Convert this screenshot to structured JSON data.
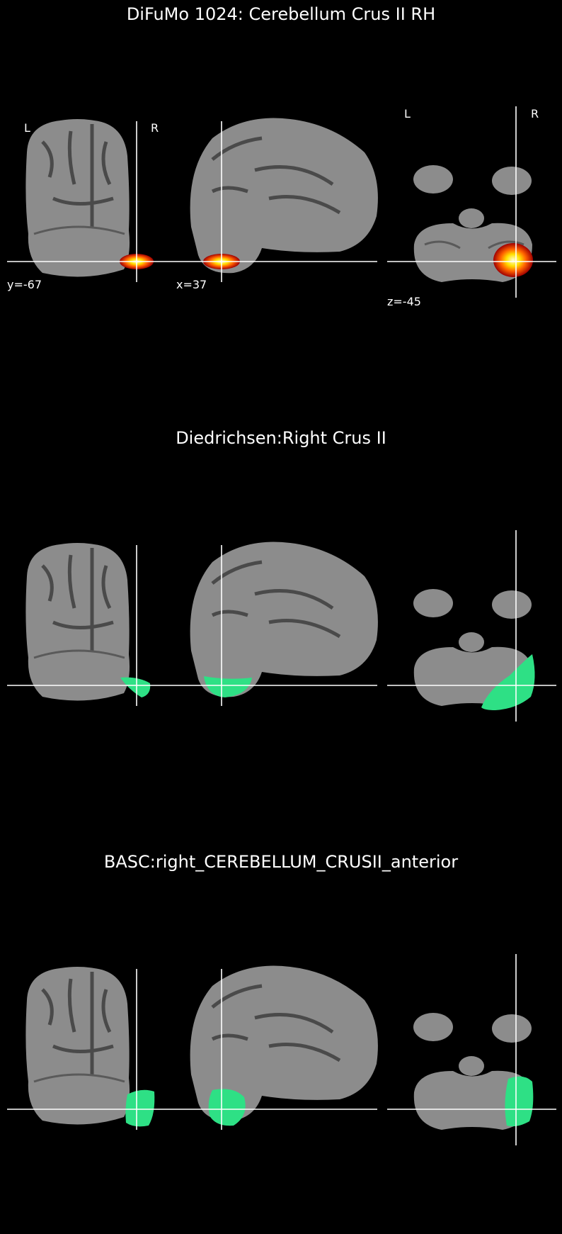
{
  "panels": [
    {
      "title": "DiFuMo 1024: Cerebellum Crus II RH",
      "overlay": "heat",
      "colors": {
        "overlay_core": "#ffffc8",
        "overlay_mid": "#ffb000",
        "overlay_edge": "#c00000"
      },
      "orientation_labels": {
        "coronal_left": "L",
        "coronal_right": "R",
        "axial_left": "L",
        "axial_right": "R"
      },
      "coords": {
        "y": "y=-67",
        "x": "x=37",
        "z": "z=-45"
      }
    },
    {
      "title": "Diedrichsen:Right Crus II",
      "overlay": "mask",
      "colors": {
        "overlay": "#2ee085"
      }
    },
    {
      "title": "BASC:right_CEREBELLUM_CRUSII_anterior",
      "overlay": "mask",
      "colors": {
        "overlay": "#2ee085"
      }
    }
  ],
  "colors": {
    "background": "#000000",
    "brain": "#8c8c8c",
    "sulci": "#4a4a4a",
    "crosshair": "#ffffff"
  }
}
